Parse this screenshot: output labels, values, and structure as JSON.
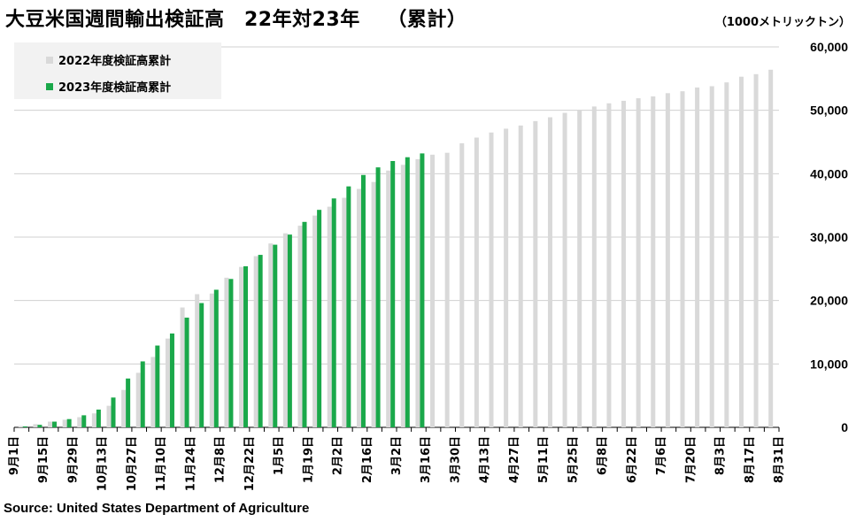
{
  "title": "大豆米国週間輸出検証高　22年対23年　 （累計）",
  "unit_label": "（1000メトリックトン）",
  "source": "Source: United States Department of Agriculture",
  "colors": {
    "series_2022": "#d9d9d9",
    "series_2023": "#1aa84a",
    "grid": "#d0d0d0",
    "axis": "#000000"
  },
  "chart_data": {
    "type": "bar",
    "title": "大豆米国週間輸出検証高　22年対23年　 （累計）",
    "ylabel": "（1000メトリックトン）",
    "ylim": [
      0,
      60000
    ],
    "yticks": [
      0,
      10000,
      20000,
      30000,
      40000,
      50000,
      60000
    ],
    "ytick_labels": [
      "0",
      "10,000",
      "20,000",
      "30,000",
      "40,000",
      "50,000",
      "60,000"
    ],
    "grid": true,
    "legend_position": "top-left",
    "xtick_labels": [
      "9月1日",
      "9月15日",
      "9月29日",
      "10月13日",
      "10月27日",
      "11月10日",
      "11月24日",
      "12月8日",
      "12月22日",
      "1月5日",
      "1月19日",
      "2月2日",
      "2月16日",
      "3月2日",
      "3月16日",
      "3月30日",
      "4月13日",
      "4月27日",
      "5月11日",
      "5月25日",
      "6月8日",
      "6月22日",
      "7月6日",
      "7月20日",
      "8月3日",
      "8月17日",
      "8月31日"
    ],
    "series": [
      {
        "name": "2022年度検証高累計",
        "values": [
          200,
          500,
          900,
          1200,
          1600,
          2200,
          3400,
          5900,
          8600,
          11100,
          14000,
          18900,
          21000,
          21100,
          23600,
          25300,
          27000,
          29000,
          30600,
          31800,
          33400,
          34800,
          36200,
          37600,
          38700,
          40500,
          41400,
          42300,
          43000,
          43300,
          44800,
          45700,
          46500,
          47100,
          47600,
          48300,
          48900,
          49600,
          50100,
          50600,
          51100,
          51500,
          51900,
          52200,
          52700,
          53000,
          53600,
          53800,
          54400,
          55300,
          55700,
          56400
        ]
      },
      {
        "name": "2023年度検証高累計",
        "values": [
          150,
          400,
          900,
          1300,
          1900,
          2800,
          4700,
          7700,
          10400,
          12900,
          14800,
          17300,
          19600,
          21700,
          23400,
          25400,
          27200,
          28800,
          30400,
          32400,
          34300,
          36100,
          38000,
          39800,
          41000,
          42000,
          42600,
          43200
        ]
      }
    ]
  }
}
